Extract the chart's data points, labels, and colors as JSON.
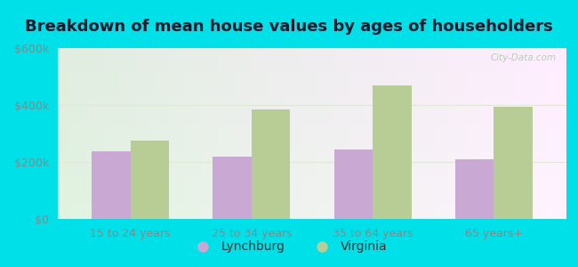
{
  "title": "Breakdown of mean house values by ages of householders",
  "categories": [
    "15 to 24 years",
    "25 to 34 years",
    "35 to 64 years",
    "65 years+"
  ],
  "lynchburg": [
    237000,
    218000,
    243000,
    208000
  ],
  "virginia": [
    275000,
    385000,
    470000,
    395000
  ],
  "lynchburg_color": "#c9a8d4",
  "virginia_color": "#b8cc96",
  "bg_top_left": "#d4edd4",
  "bg_bottom_left": "#c8e8c0",
  "bg_top_right": "#f0f8f0",
  "outer_background": "#00e0e8",
  "ylim": [
    0,
    600000
  ],
  "yticks": [
    0,
    200000,
    400000,
    600000
  ],
  "ytick_labels": [
    "$0",
    "$200k",
    "$400k",
    "$600k"
  ],
  "legend_lynchburg": "Lynchburg",
  "legend_virginia": "Virginia",
  "bar_width": 0.32,
  "title_fontsize": 13,
  "tick_fontsize": 9,
  "watermark": "City-Data.com",
  "grid_color": "#e0e8d8",
  "tick_color": "#888888"
}
